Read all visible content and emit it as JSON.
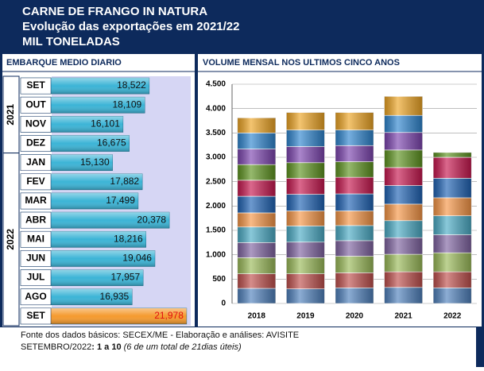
{
  "header": {
    "lines": [
      "CARNE DE FRANGO IN NATURA",
      "Evolução das exportações em 2021/22",
      "MIL TONELADAS"
    ]
  },
  "chart_data": [
    {
      "type": "hbar",
      "title": "EMBARQUE MEDIO DIARIO",
      "year_labels": [
        "2021",
        "2022"
      ],
      "categories": [
        "SET",
        "OUT",
        "NOV",
        "DEZ",
        "JAN",
        "FEV",
        "MAR",
        "ABR",
        "MAI",
        "JUN",
        "JUL",
        "AGO",
        "SET"
      ],
      "values": [
        18522,
        18109,
        16101,
        16675,
        15130,
        17882,
        17499,
        20378,
        18216,
        19046,
        17957,
        16935,
        21978
      ],
      "value_labels": [
        "18,522",
        "18,109",
        "16,101",
        "16,675",
        "15,130",
        "17,882",
        "17,499",
        "20,378",
        "18,216",
        "19,046",
        "17,957",
        "16,935",
        "21,978"
      ],
      "colors": [
        "#3cb4d6",
        "#3cb4d6",
        "#3cb4d6",
        "#3cb4d6",
        "#3cb4d6",
        "#3cb4d6",
        "#3cb4d6",
        "#3cb4d6",
        "#3cb4d6",
        "#3cb4d6",
        "#3cb4d6",
        "#3cb4d6",
        "#f59a2e"
      ],
      "label_colors": [
        "#111111",
        "#111111",
        "#111111",
        "#111111",
        "#111111",
        "#111111",
        "#111111",
        "#111111",
        "#111111",
        "#111111",
        "#111111",
        "#111111",
        "#e01010"
      ],
      "xlim": [
        9500,
        22500
      ]
    },
    {
      "type": "stacked_bar",
      "title": "VOLUME MENSAL NOS ULTIMOS CINCO ANOS",
      "categories": [
        "2018",
        "2019",
        "2020",
        "2021",
        "2022"
      ],
      "series": [
        {
          "color": "#4f81bd",
          "values": [
            310,
            300,
            320,
            330,
            320
          ]
        },
        {
          "color": "#c0504d",
          "values": [
            300,
            310,
            310,
            320,
            330
          ]
        },
        {
          "color": "#9bbb59",
          "values": [
            330,
            330,
            340,
            360,
            390
          ]
        },
        {
          "color": "#8064a2",
          "values": [
            310,
            320,
            320,
            340,
            370
          ]
        },
        {
          "color": "#4bacc6",
          "values": [
            320,
            330,
            310,
            350,
            390
          ]
        },
        {
          "color": "#f79646",
          "values": [
            290,
            310,
            300,
            340,
            370
          ]
        },
        {
          "color": "#1f63b5",
          "values": [
            340,
            340,
            350,
            380,
            400
          ]
        },
        {
          "color": "#c8174f",
          "values": [
            330,
            330,
            340,
            370,
            430
          ]
        },
        {
          "color": "#5e9420",
          "values": [
            320,
            320,
            320,
            360,
            100
          ]
        },
        {
          "color": "#7d45b0",
          "values": [
            320,
            330,
            330,
            360,
            null
          ]
        },
        {
          "color": "#2f86d0",
          "values": [
            330,
            340,
            320,
            350,
            null
          ]
        },
        {
          "color": "#eea524",
          "values": [
            310,
            360,
            360,
            390,
            null
          ]
        }
      ],
      "ylim": [
        0,
        4500
      ],
      "yticks": [
        0,
        500,
        {
          "value": 1000,
          "label": "1.000"
        },
        {
          "value": 1500,
          "label": "1.500"
        },
        {
          "value": 2000,
          "label": "2.000"
        },
        {
          "value": 2500,
          "label": "2.500"
        },
        {
          "value": 3000,
          "label": "3.000"
        },
        {
          "value": 3500,
          "label": "3.500"
        },
        {
          "value": 4000,
          "label": "4.000"
        },
        {
          "value": 4500,
          "label": "4.500"
        }
      ],
      "grid": true
    }
  ],
  "footer": {
    "source": "Fonte dos dados básicos: SECEX/ME - Elaboração e análises: AVISITE",
    "period": [
      "SETEMBRO/2022",
      ": 1 a 10",
      " (6 de um total de 21dias úteis)"
    ]
  }
}
